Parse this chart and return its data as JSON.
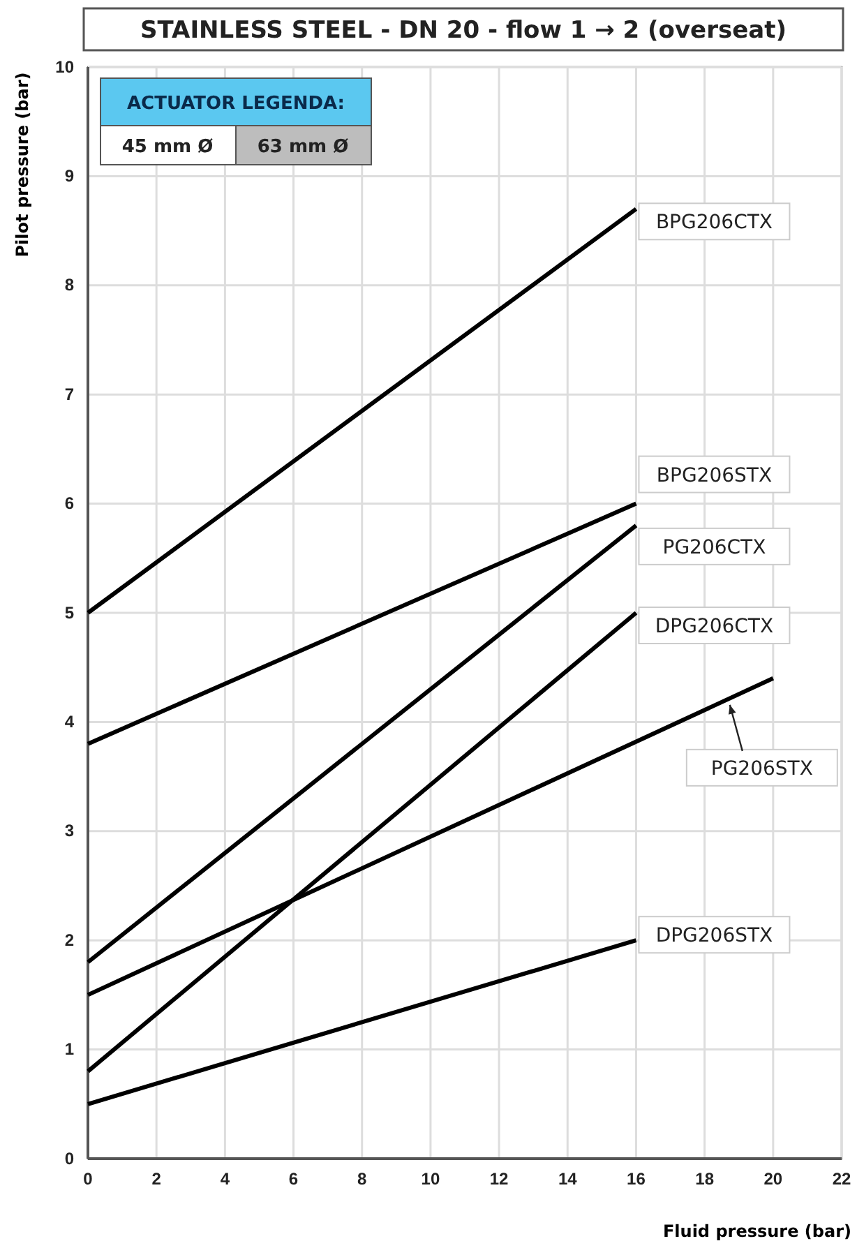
{
  "chart_data": {
    "type": "line",
    "title": "STAINLESS STEEL - DN 20 - flow 1 → 2 (overseat)",
    "xlabel": "Fluid pressure (bar)",
    "ylabel": "Pilot pressure (bar)",
    "legend_title": "ACTUATOR LEGENDA:",
    "annotations": [
      "45 mm Ø",
      "63 mm Ø"
    ],
    "xlim": [
      0,
      22
    ],
    "xticks": [
      0,
      2,
      4,
      6,
      8,
      10,
      12,
      14,
      16,
      18,
      20,
      22
    ],
    "ylim": [
      0,
      10
    ],
    "yticks": [
      0,
      1,
      2,
      3,
      4,
      5,
      6,
      7,
      8,
      9,
      10
    ],
    "grid": true,
    "marker": "none",
    "line_style": "solid",
    "series": [
      {
        "name": "BPG206CTX",
        "color": "#000000",
        "x": [
          0,
          16
        ],
        "values": [
          5,
          8.7
        ]
      },
      {
        "name": "BPG206STX",
        "color": "#000000",
        "x": [
          0,
          16
        ],
        "values": [
          3.8,
          6.0
        ]
      },
      {
        "name": "PG206CTX",
        "color": "#000000",
        "x": [
          0,
          16
        ],
        "values": [
          1.8,
          5.8
        ]
      },
      {
        "name": "DPG206CTX",
        "color": "#000000",
        "x": [
          0,
          16
        ],
        "values": [
          0.8,
          5.0
        ]
      },
      {
        "name": "PG206STX",
        "color": "#000000",
        "x": [
          0,
          20
        ],
        "values": [
          1.5,
          4.4
        ]
      },
      {
        "name": "DPG206STX",
        "color": "#000000",
        "x": [
          0,
          16
        ],
        "values": [
          0.5,
          2.0
        ]
      }
    ]
  }
}
